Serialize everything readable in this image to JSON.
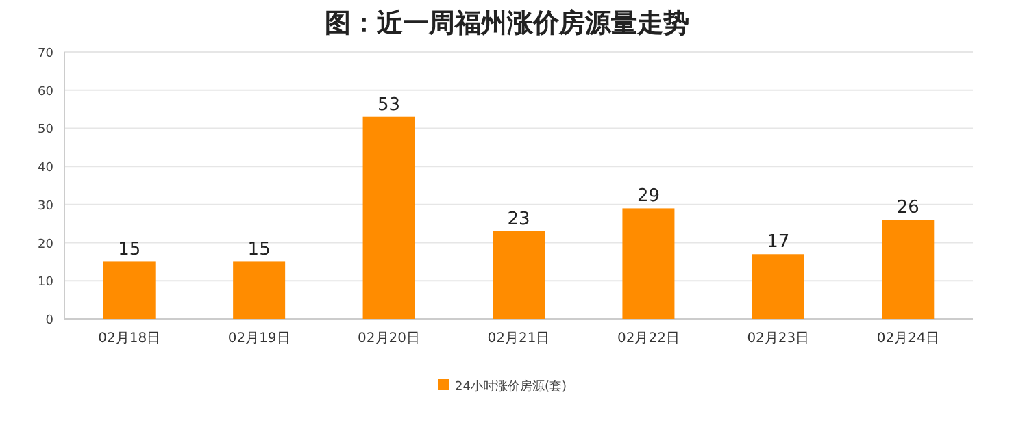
{
  "chart_data": {
    "type": "bar",
    "title": "图：近一周福州涨价房源量走势",
    "categories": [
      "02月18日",
      "02月19日",
      "02月20日",
      "02月21日",
      "02月22日",
      "02月23日",
      "02月24日"
    ],
    "series": [
      {
        "name": "24小时涨价房源(套)",
        "color": "#ff8c00",
        "values": [
          15,
          15,
          53,
          23,
          29,
          17,
          26
        ]
      }
    ],
    "ylim": [
      0,
      70
    ],
    "yticks": [
      0,
      10,
      20,
      30,
      40,
      50,
      60,
      70
    ],
    "grid": "y",
    "legend": "bottom",
    "data_labels": true
  }
}
